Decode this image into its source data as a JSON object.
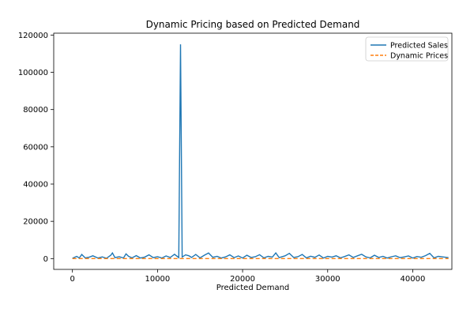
{
  "chart_data": {
    "type": "line",
    "title": "Dynamic Pricing based on Predicted Demand",
    "xlabel": "Predicted Demand",
    "ylabel": "",
    "xlim": [
      -2200,
      44600
    ],
    "ylim": [
      -5800,
      121000
    ],
    "x_ticks": [
      0,
      10000,
      20000,
      30000,
      40000
    ],
    "x_tick_labels": [
      "0",
      "10000",
      "20000",
      "30000",
      "40000"
    ],
    "y_ticks": [
      0,
      20000,
      40000,
      60000,
      80000,
      100000,
      120000
    ],
    "y_tick_labels": [
      "0",
      "20000",
      "40000",
      "60000",
      "80000",
      "100000",
      "120000"
    ],
    "grid": false,
    "legend_position": "top-right",
    "series": [
      {
        "name": "Predicted Sales",
        "color": "#1f77b4",
        "style": "solid",
        "x": [
          0,
          500,
          800,
          1100,
          1500,
          2000,
          2400,
          3000,
          3500,
          4000,
          4500,
          4700,
          5000,
          5500,
          6000,
          6300,
          6600,
          7000,
          7500,
          8000,
          8500,
          9000,
          9500,
          10000,
          10500,
          11000,
          11500,
          12000,
          12500,
          12700,
          12900,
          13300,
          13700,
          14000,
          14500,
          15000,
          15500,
          16000,
          16500,
          17000,
          17500,
          18000,
          18500,
          19000,
          19500,
          20000,
          20500,
          21000,
          21500,
          22000,
          22500,
          23000,
          23500,
          23900,
          24300,
          25000,
          25500,
          26000,
          26500,
          27000,
          27500,
          28000,
          28500,
          29000,
          29500,
          30000,
          30500,
          31000,
          31500,
          32000,
          32500,
          33000,
          33500,
          34000,
          34500,
          35000,
          35500,
          36000,
          36500,
          37000,
          37500,
          38000,
          38500,
          39000,
          39500,
          40000,
          40500,
          41000,
          41500,
          42000,
          42500,
          43000,
          43500,
          44200
        ],
        "values": [
          200,
          1200,
          300,
          2200,
          400,
          800,
          1500,
          300,
          900,
          200,
          1800,
          3000,
          500,
          1000,
          300,
          2500,
          1200,
          400,
          1600,
          300,
          800,
          2000,
          500,
          1000,
          300,
          1400,
          600,
          2300,
          500,
          115000,
          800,
          2000,
          1500,
          600,
          2200,
          400,
          1800,
          3000,
          700,
          1200,
          300,
          900,
          2000,
          500,
          1400,
          300,
          1800,
          600,
          1000,
          2100,
          400,
          1200,
          800,
          3000,
          500,
          1500,
          2800,
          600,
          1000,
          2200,
          400,
          1300,
          700,
          1900,
          300,
          1200,
          800,
          1500,
          400,
          1100,
          2000,
          600,
          1500,
          2300,
          900,
          400,
          1800,
          600,
          1200,
          300,
          1000,
          1500,
          500,
          900,
          1400,
          300,
          1100,
          700,
          1600,
          2800,
          400,
          1200,
          900,
          500
        ]
      },
      {
        "name": "Dynamic Prices",
        "color": "#ff7f0e",
        "style": "dashed",
        "x": [
          0,
          44200
        ],
        "values": [
          0,
          0
        ]
      }
    ]
  }
}
